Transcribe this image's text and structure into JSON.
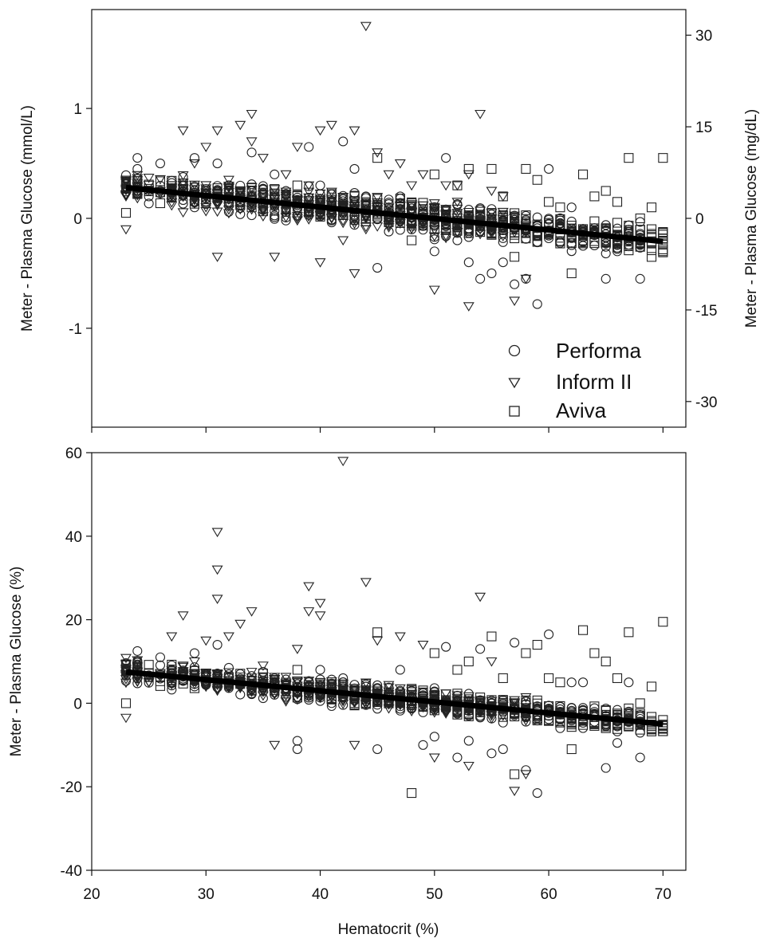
{
  "chart_data": [
    {
      "type": "scatter",
      "title": "",
      "xlabel": "",
      "ylabel": "Meter - Plasma Glucose (mmol/L)",
      "ylabel_right": "Meter - Plasma Glucose (mg/dL)",
      "xlim": [
        20,
        72
      ],
      "ylim": [
        -1.9,
        1.9
      ],
      "xticks": [
        20,
        30,
        40,
        50,
        60,
        70
      ],
      "yticks": [
        -1,
        0,
        1
      ],
      "ytick_labels": [
        "-1",
        "0",
        "1"
      ],
      "yticks_right_mgdl": [
        -30,
        -15,
        0,
        15,
        30
      ],
      "ytick_right_labels": [
        "-30",
        "-15",
        "0",
        "15",
        "30"
      ],
      "mgdl_per_mmol": 18,
      "grid": false,
      "legend": "bottom-right",
      "legend_entries": [
        "Performa",
        "Inform II",
        "Aviva"
      ],
      "series": [
        {
          "name": "Performa",
          "marker": "circle",
          "x": [
            24,
            24,
            26,
            27,
            29,
            31,
            32,
            33,
            34,
            36,
            37,
            38,
            39,
            40,
            41,
            42,
            43,
            44,
            45,
            46,
            47,
            48,
            49,
            50,
            51,
            52,
            53,
            54,
            55,
            56,
            57,
            58,
            59,
            60,
            62,
            63,
            65,
            66,
            67,
            68
          ],
          "y": [
            0.55,
            0.45,
            0.5,
            0.2,
            0.55,
            0.5,
            0.3,
            0.2,
            0.6,
            0.4,
            0.25,
            0.1,
            0.65,
            0.3,
            0.1,
            0.7,
            0.45,
            0.2,
            -0.45,
            0.1,
            0.2,
            -0.1,
            0.05,
            -0.3,
            0.55,
            -0.2,
            -0.4,
            -0.55,
            -0.5,
            -0.4,
            -0.6,
            -0.55,
            -0.78,
            0.45,
            0.1,
            -0.25,
            -0.55,
            -0.3,
            -0.2,
            -0.55
          ],
          "spread": 0.2
        },
        {
          "name": "Inform II",
          "marker": "triangle-down",
          "x": [
            23,
            23,
            27,
            28,
            29,
            30,
            31,
            31,
            32,
            33,
            34,
            34,
            35,
            36,
            37,
            38,
            39,
            40,
            40,
            41,
            42,
            43,
            43,
            44,
            45,
            46,
            47,
            48,
            49,
            50,
            51,
            52,
            53,
            53,
            54,
            55,
            56,
            57,
            58
          ],
          "y": [
            0.2,
            -0.1,
            0.3,
            0.8,
            0.5,
            0.65,
            0.8,
            -0.35,
            0.35,
            0.85,
            0.95,
            0.7,
            0.55,
            -0.35,
            0.4,
            0.65,
            0.3,
            0.8,
            -0.4,
            0.85,
            -0.2,
            0.8,
            -0.5,
            1.75,
            0.6,
            0.4,
            0.5,
            0.3,
            0.4,
            -0.65,
            0.3,
            0.3,
            -0.8,
            0.4,
            0.95,
            0.25,
            0.2,
            -0.75,
            -0.55
          ],
          "spread": 0.2
        },
        {
          "name": "Aviva",
          "marker": "square",
          "x": [
            23,
            27,
            31,
            34,
            38,
            41,
            45,
            48,
            50,
            52,
            53,
            55,
            56,
            57,
            58,
            59,
            60,
            61,
            62,
            63,
            64,
            65,
            66,
            67,
            68,
            69,
            70
          ],
          "y": [
            0.05,
            0.25,
            0.2,
            0.1,
            0.3,
            0.15,
            0.55,
            -0.2,
            0.4,
            0.3,
            0.45,
            0.45,
            0.2,
            -0.35,
            0.45,
            0.35,
            0.15,
            0.1,
            -0.5,
            0.4,
            0.2,
            0.25,
            0.15,
            0.55,
            0.0,
            0.1,
            0.55
          ],
          "spread": 0.18
        }
      ],
      "regression_line": {
        "x": [
          23,
          70
        ],
        "y": [
          0.28,
          -0.21
        ]
      }
    },
    {
      "type": "scatter",
      "title": "",
      "xlabel": "Hematocrit (%)",
      "ylabel": "Meter - Plasma Glucose (%)",
      "xlim": [
        20,
        72
      ],
      "ylim": [
        -40,
        60
      ],
      "xticks": [
        20,
        30,
        40,
        50,
        60,
        70
      ],
      "xtick_labels": [
        "20",
        "30",
        "40",
        "50",
        "60",
        "70"
      ],
      "yticks": [
        -40,
        -20,
        0,
        20,
        40,
        60
      ],
      "ytick_labels": [
        "-40",
        "-20",
        "0",
        "20",
        "40",
        "60"
      ],
      "grid": false,
      "series": [
        {
          "name": "Performa",
          "marker": "circle",
          "x": [
            24,
            24,
            26,
            27,
            29,
            31,
            32,
            33,
            36,
            38,
            38,
            40,
            42,
            44,
            45,
            47,
            49,
            50,
            51,
            52,
            53,
            54,
            55,
            56,
            57,
            58,
            59,
            60,
            62,
            63,
            65,
            66,
            67,
            68
          ],
          "y": [
            12.5,
            10,
            11,
            5,
            12,
            14,
            5,
            7,
            6,
            -9,
            -11,
            8,
            6,
            4,
            -11,
            8,
            -10,
            -8,
            13.5,
            -13,
            -9,
            13,
            -12,
            -11,
            14.5,
            -16,
            -21.5,
            16.5,
            5,
            5,
            -15.5,
            -9.5,
            5,
            -13
          ],
          "spread": 4
        },
        {
          "name": "Inform II",
          "marker": "triangle-down",
          "x": [
            23,
            23,
            27,
            28,
            29,
            30,
            31,
            31,
            31,
            32,
            33,
            34,
            35,
            36,
            38,
            39,
            39,
            40,
            40,
            42,
            43,
            44,
            45,
            47,
            49,
            50,
            53,
            54,
            55,
            57,
            58
          ],
          "y": [
            6.5,
            -3.5,
            16,
            21,
            10,
            15,
            41,
            32,
            25,
            16,
            19,
            22,
            9,
            -10,
            13,
            28,
            22,
            24,
            21,
            58,
            -10,
            29,
            15,
            16,
            14,
            -13,
            -15,
            25.5,
            10,
            -21,
            -17
          ],
          "spread": 4
        },
        {
          "name": "Aviva",
          "marker": "square",
          "x": [
            23,
            27,
            31,
            34,
            38,
            41,
            45,
            48,
            50,
            52,
            53,
            55,
            56,
            57,
            58,
            59,
            60,
            61,
            62,
            63,
            64,
            65,
            66,
            67,
            68,
            69,
            70
          ],
          "y": [
            0,
            6,
            5,
            3,
            8,
            4,
            17,
            -21.5,
            12,
            8,
            10,
            16,
            6,
            -17,
            12,
            14,
            6,
            5,
            -11,
            17.5,
            12,
            10,
            6,
            17,
            0,
            4,
            19.5
          ],
          "spread": 3.5
        }
      ],
      "regression_line": {
        "x": [
          23,
          70
        ],
        "y": [
          7.5,
          -5
        ]
      }
    }
  ]
}
